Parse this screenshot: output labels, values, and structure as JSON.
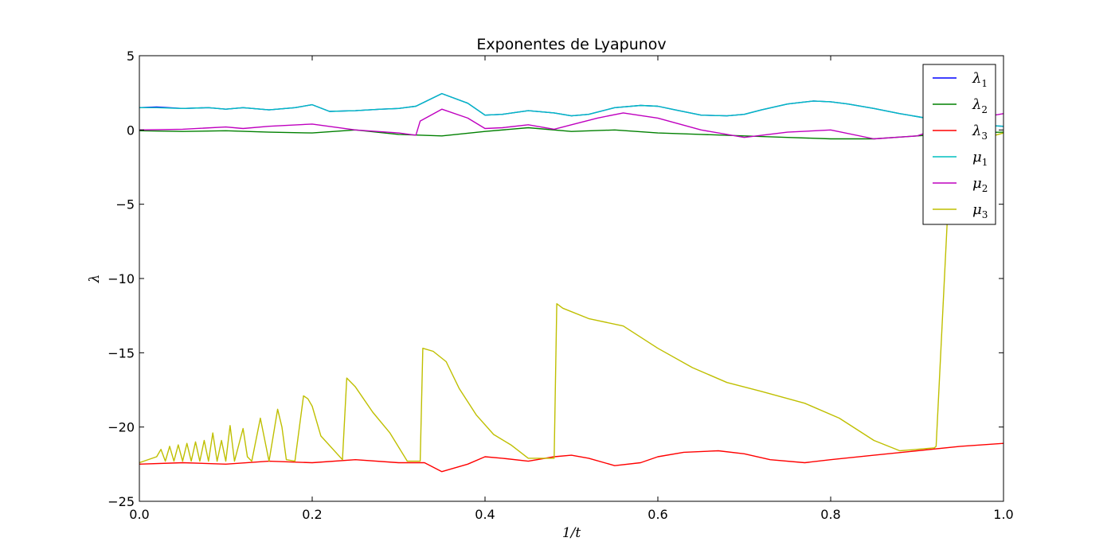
{
  "chart_data": {
    "type": "line",
    "title": "Exponentes de Lyapunov",
    "xlabel": "1/t",
    "ylabel": "λ",
    "xlim": [
      0.0,
      1.0
    ],
    "ylim": [
      -25,
      5
    ],
    "xticks": [
      0.0,
      0.2,
      0.4,
      0.6,
      0.8,
      1.0
    ],
    "xtick_labels": [
      "0.0",
      "0.2",
      "0.4",
      "0.6",
      "0.8",
      "1.0"
    ],
    "yticks": [
      5,
      0,
      -5,
      -10,
      -15,
      -20,
      -25
    ],
    "ytick_labels": [
      "5",
      "0",
      "−5",
      "−10",
      "−15",
      "−20",
      "−25"
    ],
    "grid": false,
    "legend_position": "top-right",
    "series": [
      {
        "name": "λ1",
        "base": "λ",
        "sub": "1",
        "color": "#0000ff",
        "x": [
          0.0,
          0.02,
          0.05,
          0.08,
          0.1,
          0.12,
          0.15,
          0.18,
          0.2,
          0.22,
          0.25,
          0.28,
          0.3,
          0.32,
          0.35,
          0.38,
          0.4,
          0.42,
          0.45,
          0.48,
          0.5,
          0.52,
          0.55,
          0.58,
          0.6,
          0.62,
          0.65,
          0.68,
          0.7,
          0.72,
          0.75,
          0.78,
          0.8,
          0.82,
          0.85,
          0.88,
          0.9,
          0.92,
          0.95,
          0.98,
          1.0
        ],
        "y": [
          1.5,
          1.55,
          1.45,
          1.5,
          1.4,
          1.5,
          1.35,
          1.5,
          1.7,
          1.25,
          1.3,
          1.4,
          1.45,
          1.6,
          2.45,
          1.8,
          1.0,
          1.05,
          1.3,
          1.15,
          0.95,
          1.05,
          1.5,
          1.65,
          1.6,
          1.35,
          1.0,
          0.95,
          1.05,
          1.35,
          1.75,
          1.95,
          1.9,
          1.75,
          1.45,
          1.1,
          0.9,
          0.7,
          0.45,
          0.3,
          0.25
        ]
      },
      {
        "name": "λ2",
        "base": "λ",
        "sub": "2",
        "color": "#008000",
        "x": [
          0.0,
          0.05,
          0.1,
          0.15,
          0.2,
          0.25,
          0.3,
          0.35,
          0.4,
          0.45,
          0.5,
          0.55,
          0.6,
          0.65,
          0.7,
          0.75,
          0.8,
          0.85,
          0.9,
          0.95,
          1.0
        ],
        "y": [
          -0.05,
          -0.1,
          -0.05,
          -0.15,
          -0.2,
          0.0,
          -0.3,
          -0.4,
          -0.1,
          0.15,
          -0.1,
          0.0,
          -0.2,
          -0.3,
          -0.4,
          -0.5,
          -0.6,
          -0.6,
          -0.4,
          -0.2,
          -0.15
        ]
      },
      {
        "name": "λ3",
        "base": "λ",
        "sub": "3",
        "color": "#ff0000",
        "x": [
          0.0,
          0.05,
          0.1,
          0.15,
          0.2,
          0.25,
          0.3,
          0.33,
          0.35,
          0.38,
          0.4,
          0.42,
          0.45,
          0.48,
          0.5,
          0.52,
          0.55,
          0.58,
          0.6,
          0.63,
          0.67,
          0.7,
          0.73,
          0.77,
          0.8,
          0.85,
          0.9,
          0.95,
          1.0
        ],
        "y": [
          -22.5,
          -22.4,
          -22.5,
          -22.3,
          -22.4,
          -22.2,
          -22.4,
          -22.4,
          -23.0,
          -22.5,
          -22.0,
          -22.1,
          -22.3,
          -22.0,
          -21.9,
          -22.1,
          -22.6,
          -22.4,
          -22.0,
          -21.7,
          -21.6,
          -21.8,
          -22.2,
          -22.4,
          -22.2,
          -21.9,
          -21.6,
          -21.3,
          -21.1
        ]
      },
      {
        "name": "μ1",
        "base": "μ",
        "sub": "1",
        "color": "#00bfbf",
        "x": [
          0.0,
          0.02,
          0.05,
          0.08,
          0.1,
          0.12,
          0.15,
          0.18,
          0.2,
          0.22,
          0.25,
          0.28,
          0.3,
          0.32,
          0.35,
          0.38,
          0.4,
          0.42,
          0.45,
          0.48,
          0.5,
          0.52,
          0.55,
          0.58,
          0.6,
          0.62,
          0.65,
          0.68,
          0.7,
          0.72,
          0.75,
          0.78,
          0.8,
          0.82,
          0.85,
          0.88,
          0.9,
          0.92,
          0.95,
          0.98,
          1.0
        ],
        "y": [
          1.5,
          1.5,
          1.45,
          1.5,
          1.4,
          1.5,
          1.35,
          1.5,
          1.7,
          1.25,
          1.3,
          1.4,
          1.45,
          1.6,
          2.45,
          1.8,
          1.0,
          1.05,
          1.3,
          1.15,
          0.95,
          1.05,
          1.5,
          1.65,
          1.6,
          1.35,
          1.0,
          0.95,
          1.05,
          1.35,
          1.75,
          1.95,
          1.9,
          1.75,
          1.45,
          1.1,
          0.9,
          0.7,
          0.45,
          0.3,
          0.25
        ]
      },
      {
        "name": "μ2",
        "base": "μ",
        "sub": "2",
        "color": "#bf00bf",
        "x": [
          0.0,
          0.05,
          0.1,
          0.12,
          0.15,
          0.2,
          0.25,
          0.3,
          0.32,
          0.325,
          0.35,
          0.38,
          0.4,
          0.42,
          0.45,
          0.48,
          0.5,
          0.53,
          0.56,
          0.6,
          0.65,
          0.7,
          0.75,
          0.8,
          0.85,
          0.9,
          0.95,
          1.0
        ],
        "y": [
          0.0,
          0.05,
          0.2,
          0.1,
          0.25,
          0.4,
          0.0,
          -0.2,
          -0.35,
          0.6,
          1.4,
          0.8,
          0.1,
          0.15,
          0.35,
          0.05,
          0.35,
          0.8,
          1.15,
          0.8,
          0.0,
          -0.5,
          -0.15,
          0.0,
          -0.6,
          -0.4,
          0.6,
          1.1
        ]
      },
      {
        "name": "μ3",
        "base": "μ",
        "sub": "3",
        "color": "#bfbf00",
        "x": [
          0.0,
          0.02,
          0.025,
          0.03,
          0.035,
          0.04,
          0.045,
          0.05,
          0.055,
          0.06,
          0.065,
          0.07,
          0.075,
          0.08,
          0.085,
          0.09,
          0.095,
          0.1,
          0.105,
          0.11,
          0.12,
          0.125,
          0.13,
          0.14,
          0.15,
          0.16,
          0.165,
          0.17,
          0.18,
          0.19,
          0.195,
          0.2,
          0.21,
          0.235,
          0.24,
          0.25,
          0.27,
          0.29,
          0.31,
          0.325,
          0.328,
          0.34,
          0.355,
          0.37,
          0.39,
          0.41,
          0.43,
          0.45,
          0.48,
          0.483,
          0.49,
          0.52,
          0.56,
          0.6,
          0.64,
          0.68,
          0.72,
          0.77,
          0.81,
          0.85,
          0.88,
          0.9,
          0.92,
          0.922,
          0.935,
          0.95,
          1.0
        ],
        "y": [
          -22.4,
          -22.0,
          -21.5,
          -22.3,
          -21.3,
          -22.3,
          -21.2,
          -22.3,
          -21.1,
          -22.3,
          -21.0,
          -22.3,
          -20.9,
          -22.3,
          -20.4,
          -22.3,
          -20.9,
          -22.3,
          -19.9,
          -22.3,
          -20.1,
          -22.0,
          -22.3,
          -19.4,
          -22.3,
          -18.8,
          -20.0,
          -22.2,
          -22.3,
          -17.9,
          -18.1,
          -18.6,
          -20.6,
          -22.2,
          -16.7,
          -17.3,
          -19.0,
          -20.4,
          -22.3,
          -22.3,
          -14.7,
          -14.9,
          -15.6,
          -17.4,
          -19.2,
          -20.5,
          -21.2,
          -22.1,
          -22.1,
          -11.7,
          -12.0,
          -12.7,
          -13.2,
          -14.7,
          -16.0,
          -17.0,
          -17.6,
          -18.4,
          -19.4,
          -20.9,
          -21.6,
          -21.5,
          -21.4,
          -21.3,
          -6.0,
          -1.0,
          -0.2
        ]
      }
    ]
  }
}
